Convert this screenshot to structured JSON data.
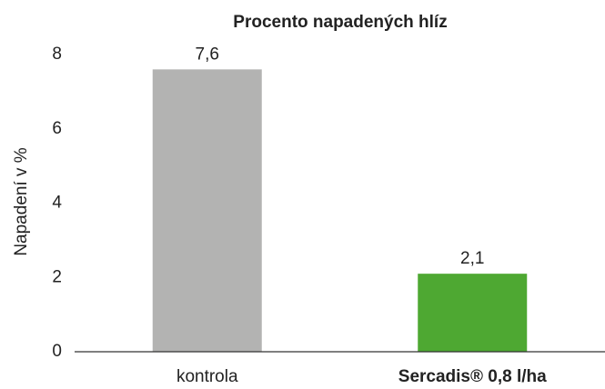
{
  "chart_data": {
    "type": "bar",
    "title": "Procento napadených hlíz",
    "ylabel": "Napadení v %",
    "categories": [
      "kontrola",
      "Sercadis® 0,8 l/ha"
    ],
    "values": [
      7.6,
      2.1
    ],
    "value_labels": [
      "7,6",
      "2,1"
    ],
    "colors": [
      "#b3b3b2",
      "#4ea832"
    ],
    "ylim": [
      0,
      8
    ],
    "yticks": [
      0,
      2,
      4,
      6,
      8
    ],
    "grid": false
  }
}
